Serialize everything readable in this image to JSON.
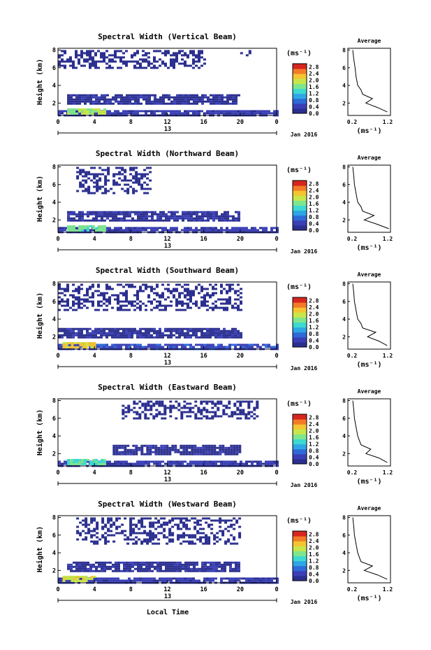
{
  "figure": {
    "xlabel_bottom": "Local Time",
    "date_label": "Jan 2016",
    "day_label": "13",
    "colorbar_unit": "(ms⁻¹)",
    "colorbar_ticks": [
      "0.0",
      "0.4",
      "0.8",
      "1.2",
      "1.6",
      "2.0",
      "2.4",
      "2.8"
    ],
    "colorbar_range": [
      0.0,
      3.0
    ],
    "colormap": [
      "#2b2f8f",
      "#3a3fb6",
      "#2e6ad8",
      "#2fa6e6",
      "#3ed9d0",
      "#7fe68e",
      "#c8e64a",
      "#f4c531",
      "#f37b27",
      "#d7261e"
    ],
    "x_ticks": [
      "0",
      "4",
      "8",
      "12",
      "16",
      "20",
      "0"
    ],
    "x_range_hours": [
      0,
      24
    ],
    "height_ticks": [
      "2",
      "4",
      "6",
      "8"
    ],
    "height_range_km": [
      0.6,
      8.2
    ],
    "ylabel": "Height (km)",
    "avg_title": "Average",
    "avg_xticks": [
      "0.2",
      "1.2"
    ],
    "avg_xlabel": "(ms⁻¹)"
  },
  "chart_data": [
    {
      "type": "heatmap",
      "title": "Spectral Width (Vertical Beam)",
      "ylabel": "Height (km)",
      "xlim": [
        0,
        24
      ],
      "ylim": [
        0.6,
        8.2
      ],
      "regions": [
        {
          "x": [
            0,
            24
          ],
          "y": [
            0.7,
            1.2
          ],
          "value": 0.4
        },
        {
          "x": [
            1,
            5
          ],
          "y": [
            0.8,
            1.4
          ],
          "value": 1.8
        },
        {
          "x": [
            1,
            20
          ],
          "y": [
            2.0,
            3.0
          ],
          "value": 0.2
        },
        {
          "x": [
            0,
            16
          ],
          "y": [
            6.0,
            8.0
          ],
          "value": 0.05
        },
        {
          "x": [
            20,
            22
          ],
          "y": [
            7.4,
            8.0
          ],
          "value": 0.05
        }
      ],
      "average": {
        "heights": [
          1.0,
          1.5,
          2.0,
          2.5,
          3.0,
          3.5,
          4.0,
          5.0,
          6.0,
          7.0,
          8.0
        ],
        "values": [
          1.2,
          0.9,
          0.55,
          0.75,
          0.45,
          0.4,
          0.3,
          0.25,
          0.22,
          0.18,
          0.15
        ],
        "xlim": [
          0.0,
          1.3
        ]
      }
    },
    {
      "type": "heatmap",
      "title": "Spectral Width (Northward Beam)",
      "ylabel": "Height (km)",
      "xlim": [
        0,
        24
      ],
      "ylim": [
        0.6,
        8.2
      ],
      "regions": [
        {
          "x": [
            0,
            24
          ],
          "y": [
            0.7,
            1.2
          ],
          "value": 0.4
        },
        {
          "x": [
            1,
            5
          ],
          "y": [
            0.8,
            1.4
          ],
          "value": 1.6
        },
        {
          "x": [
            1,
            20
          ],
          "y": [
            2.0,
            3.0
          ],
          "value": 0.2
        },
        {
          "x": [
            2,
            10
          ],
          "y": [
            5.0,
            8.0
          ],
          "value": 0.05
        }
      ],
      "average": {
        "heights": [
          1.0,
          1.5,
          2.0,
          2.5,
          3.0,
          3.5,
          4.0,
          5.0,
          6.0,
          7.0,
          8.0
        ],
        "values": [
          1.25,
          0.9,
          0.5,
          0.8,
          0.45,
          0.4,
          0.3,
          0.25,
          0.2,
          0.18,
          0.15
        ],
        "xlim": [
          0.0,
          1.3
        ]
      }
    },
    {
      "type": "heatmap",
      "title": "Spectral Width (Southward Beam)",
      "ylabel": "Height (km)",
      "xlim": [
        0,
        24
      ],
      "ylim": [
        0.6,
        8.2
      ],
      "regions": [
        {
          "x": [
            0,
            24
          ],
          "y": [
            0.7,
            1.2
          ],
          "value": 0.5
        },
        {
          "x": [
            0.5,
            4
          ],
          "y": [
            0.8,
            1.4
          ],
          "value": 2.2
        },
        {
          "x": [
            0,
            20
          ],
          "y": [
            2.0,
            3.0
          ],
          "value": 0.2
        },
        {
          "x": [
            0,
            20
          ],
          "y": [
            5.0,
            8.0
          ],
          "value": 0.05
        }
      ],
      "average": {
        "heights": [
          1.0,
          1.5,
          2.0,
          2.5,
          3.0,
          3.5,
          4.0,
          5.0,
          6.0,
          7.0,
          8.0
        ],
        "values": [
          1.2,
          0.95,
          0.6,
          0.85,
          0.45,
          0.4,
          0.3,
          0.25,
          0.2,
          0.18,
          0.15
        ],
        "xlim": [
          0.0,
          1.3
        ]
      }
    },
    {
      "type": "heatmap",
      "title": "Spectral Width (Eastward Beam)",
      "ylabel": "Height (km)",
      "xlim": [
        0,
        24
      ],
      "ylim": [
        0.6,
        8.2
      ],
      "regions": [
        {
          "x": [
            0,
            24
          ],
          "y": [
            0.7,
            1.2
          ],
          "value": 0.4
        },
        {
          "x": [
            1,
            5
          ],
          "y": [
            0.8,
            1.4
          ],
          "value": 1.5
        },
        {
          "x": [
            6,
            20
          ],
          "y": [
            2.0,
            3.0
          ],
          "value": 0.2
        },
        {
          "x": [
            7,
            22
          ],
          "y": [
            6.0,
            8.0
          ],
          "value": 0.05
        }
      ],
      "average": {
        "heights": [
          1.0,
          1.5,
          2.0,
          2.5,
          3.0,
          3.5,
          4.0,
          5.0,
          6.0,
          7.0,
          8.0
        ],
        "values": [
          1.2,
          0.95,
          0.55,
          0.7,
          0.4,
          0.35,
          0.3,
          0.25,
          0.2,
          0.18,
          0.15
        ],
        "xlim": [
          0.0,
          1.3
        ]
      }
    },
    {
      "type": "heatmap",
      "title": "Spectral Width (Westward Beam)",
      "ylabel": "Height (km)",
      "xlim": [
        0,
        24
      ],
      "ylim": [
        0.6,
        8.2
      ],
      "regions": [
        {
          "x": [
            0,
            24
          ],
          "y": [
            0.7,
            1.2
          ],
          "value": 0.4
        },
        {
          "x": [
            0.5,
            4
          ],
          "y": [
            0.8,
            1.4
          ],
          "value": 2.0
        },
        {
          "x": [
            1,
            20
          ],
          "y": [
            2.0,
            3.0
          ],
          "value": 0.2
        },
        {
          "x": [
            2,
            20
          ],
          "y": [
            5.0,
            8.0
          ],
          "value": 0.05
        }
      ],
      "average": {
        "heights": [
          1.0,
          1.5,
          2.0,
          2.5,
          3.0,
          3.5,
          4.0,
          5.0,
          6.0,
          7.0,
          8.0
        ],
        "values": [
          1.2,
          0.9,
          0.5,
          0.75,
          0.4,
          0.35,
          0.3,
          0.25,
          0.2,
          0.18,
          0.15
        ],
        "xlim": [
          0.0,
          1.3
        ]
      }
    }
  ]
}
